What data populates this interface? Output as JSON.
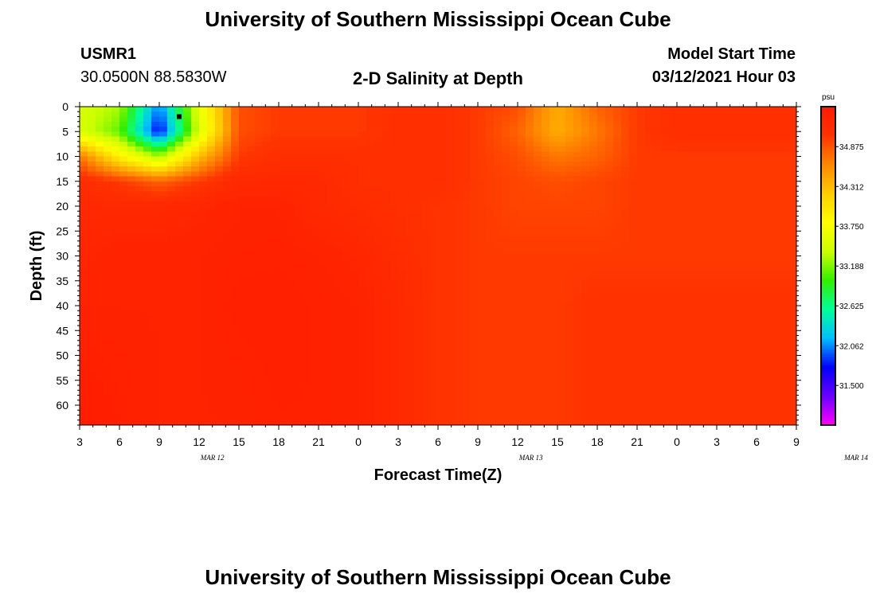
{
  "page": {
    "title_top": "University of Southern Mississippi Ocean Cube",
    "title_bottom": "University of Southern Mississippi Ocean Cube",
    "station": "USMR1",
    "coords": "30.0500N 88.5830W",
    "subtitle": "2-D Salinity at Depth",
    "model_start_label": "Model Start Time",
    "model_start_value": "03/12/2021 Hour 03"
  },
  "chart_data": {
    "type": "heatmap",
    "title": "2-D Salinity at Depth",
    "xlabel": "Forecast Time(Z)",
    "ylabel": "Depth (ft)",
    "units": "psu",
    "x_ticks": [
      "3",
      "6",
      "9",
      "12",
      "15",
      "18",
      "21",
      "0",
      "3",
      "6",
      "9",
      "12",
      "15",
      "18",
      "21",
      "0",
      "3",
      "6",
      "9"
    ],
    "x_range_hours": [
      0,
      54
    ],
    "date_labels": [
      {
        "text": "MAR 12",
        "hour": 10
      },
      {
        "text": "MAR 13",
        "hour": 34
      },
      {
        "text": "MAR 14",
        "hour": 58.5
      }
    ],
    "y_ticks": [
      "0",
      "5",
      "10",
      "15",
      "20",
      "25",
      "30",
      "35",
      "40",
      "45",
      "50",
      "55",
      "60"
    ],
    "ylim": [
      0,
      64
    ],
    "y_inverted": true,
    "colorbar": {
      "labels": [
        "34.875",
        "34.312",
        "33.750",
        "33.188",
        "32.625",
        "32.062",
        "31.500"
      ],
      "min": 30.94,
      "max": 35.44,
      "colors": [
        "#ff00ff",
        "#6a00ff",
        "#0000ff",
        "#00bfff",
        "#00ff99",
        "#33ee00",
        "#ccff00",
        "#ffff00",
        "#ffcc00",
        "#ff8800",
        "#ff3300",
        "#ff1a00"
      ]
    },
    "marker": {
      "hour": 7.5,
      "depth": 2
    },
    "hours": [
      0,
      3,
      6,
      9,
      12,
      15,
      18,
      21,
      24,
      27,
      30,
      33,
      36,
      39,
      42,
      45,
      48,
      51,
      54
    ],
    "depths": [
      0,
      5,
      10,
      15,
      20,
      30,
      40,
      50,
      64
    ],
    "values": [
      [
        33.5,
        33.3,
        32.0,
        33.6,
        34.9,
        35.0,
        35.0,
        35.0,
        35.1,
        35.1,
        35.0,
        34.9,
        34.4,
        34.8,
        35.0,
        35.1,
        35.1,
        35.1,
        35.1
      ],
      [
        33.5,
        33.1,
        31.7,
        33.5,
        34.9,
        35.0,
        35.0,
        35.0,
        35.1,
        35.1,
        35.0,
        34.8,
        34.4,
        34.7,
        35.0,
        35.1,
        35.1,
        35.1,
        35.1
      ],
      [
        34.7,
        33.9,
        33.3,
        34.3,
        35.0,
        35.1,
        35.1,
        35.1,
        35.1,
        35.1,
        35.0,
        34.9,
        34.7,
        34.8,
        35.0,
        35.0,
        35.0,
        35.0,
        35.0
      ],
      [
        35.15,
        35.0,
        34.8,
        35.0,
        35.2,
        35.2,
        35.2,
        35.1,
        35.1,
        35.1,
        35.0,
        34.95,
        34.9,
        34.95,
        35.0,
        35.0,
        35.0,
        35.0,
        35.0
      ],
      [
        35.2,
        35.2,
        35.2,
        35.25,
        35.3,
        35.3,
        35.2,
        35.15,
        35.1,
        35.05,
        35.0,
        34.95,
        34.95,
        34.95,
        35.0,
        35.0,
        35.0,
        35.0,
        35.0
      ],
      [
        35.25,
        35.3,
        35.3,
        35.3,
        35.32,
        35.33,
        35.3,
        35.25,
        35.15,
        35.05,
        35.0,
        35.0,
        35.0,
        35.0,
        35.0,
        35.0,
        35.0,
        35.0,
        35.0
      ],
      [
        35.3,
        35.3,
        35.3,
        35.3,
        35.35,
        35.35,
        35.33,
        35.3,
        35.2,
        35.05,
        35.0,
        35.0,
        35.0,
        35.05,
        35.05,
        35.05,
        35.05,
        35.05,
        35.05
      ],
      [
        35.35,
        35.32,
        35.3,
        35.3,
        35.32,
        35.35,
        35.33,
        35.3,
        35.2,
        35.05,
        35.0,
        35.0,
        35.0,
        35.05,
        35.05,
        35.05,
        35.05,
        35.05,
        35.05
      ],
      [
        35.4,
        35.35,
        35.3,
        35.3,
        35.3,
        35.33,
        35.33,
        35.3,
        35.2,
        35.05,
        35.0,
        35.0,
        35.0,
        35.05,
        35.05,
        35.05,
        35.05,
        35.05,
        35.05
      ]
    ]
  }
}
